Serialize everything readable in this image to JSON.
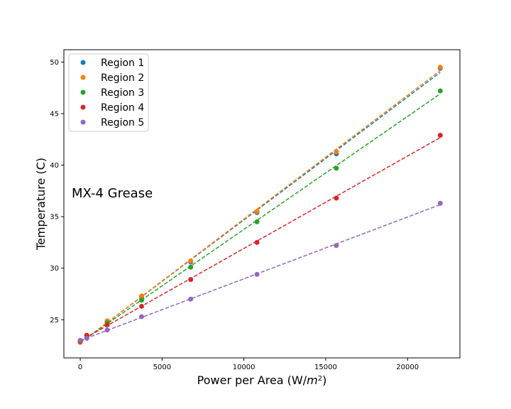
{
  "chart_data": {
    "type": "scatter",
    "title": "",
    "xlabel": "Power per Area (W/m²)",
    "xlabel_main": "Power per Area (W/",
    "xlabel_unit_base": "m",
    "xlabel_unit_exp": "2",
    "xlabel_close": ")",
    "ylabel": "Temperature (C)",
    "annotation": "MX-4 Grease",
    "xlim": [
      -1000,
      23200
    ],
    "ylim": [
      21.3,
      51.2
    ],
    "xticks": [
      0,
      5000,
      10000,
      15000,
      20000
    ],
    "yticks": [
      25,
      30,
      35,
      40,
      45,
      50
    ],
    "grid": false,
    "legend_position": "top-left",
    "fit_lines": "dashed",
    "x": [
      0,
      400,
      1650,
      3750,
      6750,
      10800,
      15650,
      22000
    ],
    "series": [
      {
        "name": "Region 1",
        "color": "#1f77b4",
        "values": [
          22.9,
          23.4,
          24.8,
          27.2,
          30.6,
          35.4,
          41.1,
          49.4
        ]
      },
      {
        "name": "Region 2",
        "color": "#ff7f0e",
        "values": [
          22.8,
          23.3,
          24.9,
          27.3,
          30.7,
          35.5,
          41.3,
          49.5
        ]
      },
      {
        "name": "Region 3",
        "color": "#2ca02c",
        "values": [
          22.9,
          23.3,
          24.7,
          26.9,
          30.1,
          34.5,
          39.7,
          47.2
        ]
      },
      {
        "name": "Region 4",
        "color": "#d62728",
        "values": [
          22.9,
          23.5,
          24.5,
          26.3,
          28.9,
          32.5,
          36.8,
          42.9
        ]
      },
      {
        "name": "Region 5",
        "color": "#9467bd",
        "values": [
          23.0,
          23.2,
          24.0,
          25.3,
          27.0,
          29.4,
          32.2,
          36.3
        ]
      }
    ]
  }
}
